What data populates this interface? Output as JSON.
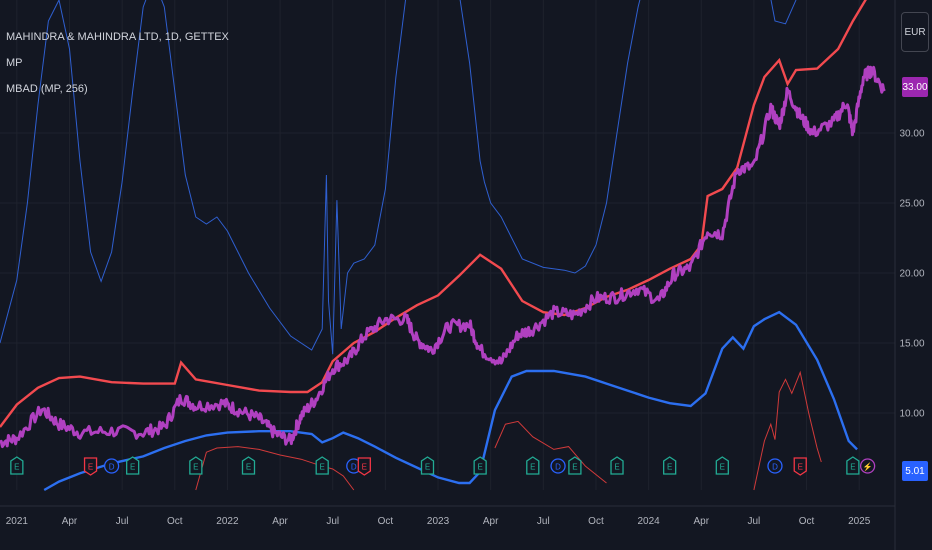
{
  "legend": {
    "symbol": "MAHINDRA & MAHINDRA LTD, 1D, GETTEX",
    "indicator1": "MP",
    "indicator2": "MBAD (MP, 256)"
  },
  "currency": "EUR",
  "badges": {
    "price": "33.00",
    "lower": "5.01"
  },
  "colors": {
    "background": "#131722",
    "price": "#b040c0",
    "upper": "#f24a4f",
    "lower": "#2c6ff0",
    "thin_blue": "#2f5fd0",
    "thin_red": "#d03a3a",
    "event_green": "#22ab94",
    "event_blue": "#2962ff",
    "event_red": "#f23645",
    "grid": "#1e222d",
    "text": "#b2b5be"
  },
  "chart_data": {
    "type": "line",
    "x_tick_labels": [
      "2021",
      "Apr",
      "Jul",
      "Oct",
      "2022",
      "Apr",
      "Jul",
      "Oct",
      "2023",
      "Apr",
      "Jul",
      "Oct",
      "2024",
      "Apr",
      "Jul",
      "Oct",
      "2025"
    ],
    "y_ticks": [
      10,
      15,
      20,
      25,
      30
    ],
    "y_tick_labels": [
      "10.00",
      "15.00",
      "20.00",
      "25.00",
      "30.00"
    ],
    "ylim": [
      4.5,
      39.5
    ],
    "xlim": [
      2020.92,
      2025.17
    ],
    "series": [
      {
        "name": "MP",
        "color": "#b040c0",
        "points": [
          [
            2020.92,
            7.9
          ],
          [
            2021.0,
            8.2
          ],
          [
            2021.12,
            10.3
          ],
          [
            2021.2,
            9.2
          ],
          [
            2021.3,
            8.6
          ],
          [
            2021.45,
            8.7
          ],
          [
            2021.6,
            8.6
          ],
          [
            2021.7,
            9.0
          ],
          [
            2021.78,
            11.1
          ],
          [
            2021.85,
            10.5
          ],
          [
            2021.98,
            10.7
          ],
          [
            2022.05,
            10.2
          ],
          [
            2022.15,
            9.6
          ],
          [
            2022.22,
            8.6
          ],
          [
            2022.3,
            8.0
          ],
          [
            2022.35,
            9.8
          ],
          [
            2022.42,
            11.0
          ],
          [
            2022.5,
            13.2
          ],
          [
            2022.58,
            13.9
          ],
          [
            2022.65,
            15.5
          ],
          [
            2022.75,
            16.7
          ],
          [
            2022.85,
            16.7
          ],
          [
            2022.9,
            15.2
          ],
          [
            2022.97,
            14.5
          ],
          [
            2023.05,
            16.2
          ],
          [
            2023.15,
            16.3
          ],
          [
            2023.2,
            14.5
          ],
          [
            2023.3,
            13.6
          ],
          [
            2023.38,
            15.6
          ],
          [
            2023.45,
            16.0
          ],
          [
            2023.55,
            17.2
          ],
          [
            2023.65,
            17.0
          ],
          [
            2023.75,
            18.2
          ],
          [
            2023.85,
            18.3
          ],
          [
            2023.95,
            18.9
          ],
          [
            2024.05,
            18.0
          ],
          [
            2024.12,
            19.9
          ],
          [
            2024.2,
            20.4
          ],
          [
            2024.28,
            23.0
          ],
          [
            2024.35,
            22.8
          ],
          [
            2024.42,
            27.4
          ],
          [
            2024.5,
            27.6
          ],
          [
            2024.58,
            31.8
          ],
          [
            2024.62,
            30.5
          ],
          [
            2024.66,
            33.0
          ],
          [
            2024.72,
            31.2
          ],
          [
            2024.78,
            30.0
          ],
          [
            2024.88,
            30.8
          ],
          [
            2024.94,
            32.2
          ],
          [
            2024.97,
            30.0
          ],
          [
            2025.02,
            34.0
          ],
          [
            2025.06,
            34.5
          ],
          [
            2025.12,
            33.0
          ]
        ]
      },
      {
        "name": "",
        "color": "#f24a4f",
        "points": [
          [
            2020.92,
            9.0
          ],
          [
            2021.0,
            10.6
          ],
          [
            2021.1,
            11.8
          ],
          [
            2021.2,
            12.5
          ],
          [
            2021.3,
            12.6
          ],
          [
            2021.45,
            12.2
          ],
          [
            2021.6,
            12.1
          ],
          [
            2021.7,
            12.1
          ],
          [
            2021.75,
            12.1
          ],
          [
            2021.78,
            13.6
          ],
          [
            2021.85,
            12.4
          ],
          [
            2022.0,
            12.0
          ],
          [
            2022.15,
            11.6
          ],
          [
            2022.3,
            11.5
          ],
          [
            2022.38,
            11.5
          ],
          [
            2022.45,
            12.2
          ],
          [
            2022.5,
            13.7
          ],
          [
            2022.6,
            15.0
          ],
          [
            2022.7,
            15.8
          ],
          [
            2022.8,
            16.8
          ],
          [
            2022.9,
            17.7
          ],
          [
            2023.0,
            18.4
          ],
          [
            2023.1,
            19.8
          ],
          [
            2023.2,
            21.3
          ],
          [
            2023.3,
            20.3
          ],
          [
            2023.4,
            18.0
          ],
          [
            2023.5,
            17.2
          ],
          [
            2023.6,
            17.0
          ],
          [
            2023.7,
            17.5
          ],
          [
            2023.8,
            18.3
          ],
          [
            2023.9,
            18.8
          ],
          [
            2024.0,
            19.5
          ],
          [
            2024.1,
            20.3
          ],
          [
            2024.2,
            21.0
          ],
          [
            2024.25,
            22.0
          ],
          [
            2024.28,
            25.5
          ],
          [
            2024.35,
            26.0
          ],
          [
            2024.42,
            27.5
          ],
          [
            2024.5,
            32.0
          ],
          [
            2024.55,
            34.0
          ],
          [
            2024.62,
            35.2
          ],
          [
            2024.66,
            33.5
          ],
          [
            2024.7,
            34.5
          ],
          [
            2024.8,
            34.6
          ],
          [
            2024.9,
            36.0
          ],
          [
            2024.97,
            38.0
          ],
          [
            2025.05,
            40.0
          ]
        ]
      },
      {
        "name": "",
        "color": "#2c6ff0",
        "points": [
          [
            2021.13,
            4.5
          ],
          [
            2021.2,
            5.1
          ],
          [
            2021.3,
            5.7
          ],
          [
            2021.45,
            6.4
          ],
          [
            2021.6,
            6.9
          ],
          [
            2021.7,
            7.5
          ],
          [
            2021.8,
            8.0
          ],
          [
            2021.9,
            8.4
          ],
          [
            2022.0,
            8.6
          ],
          [
            2022.15,
            8.7
          ],
          [
            2022.3,
            8.7
          ],
          [
            2022.4,
            8.5
          ],
          [
            2022.45,
            7.9
          ],
          [
            2022.5,
            8.2
          ],
          [
            2022.55,
            8.6
          ],
          [
            2022.62,
            8.2
          ],
          [
            2022.7,
            7.6
          ],
          [
            2022.8,
            6.8
          ],
          [
            2022.9,
            6.1
          ],
          [
            2023.0,
            5.4
          ],
          [
            2023.1,
            5.0
          ],
          [
            2023.15,
            5.0
          ],
          [
            2023.2,
            5.8
          ],
          [
            2023.27,
            10.2
          ],
          [
            2023.35,
            12.6
          ],
          [
            2023.42,
            13.0
          ],
          [
            2023.55,
            13.0
          ],
          [
            2023.7,
            12.6
          ],
          [
            2023.8,
            12.1
          ],
          [
            2023.9,
            11.6
          ],
          [
            2024.0,
            11.1
          ],
          [
            2024.1,
            10.7
          ],
          [
            2024.2,
            10.5
          ],
          [
            2024.27,
            11.4
          ],
          [
            2024.35,
            14.6
          ],
          [
            2024.4,
            15.4
          ],
          [
            2024.45,
            14.6
          ],
          [
            2024.5,
            16.2
          ],
          [
            2024.55,
            16.7
          ],
          [
            2024.62,
            17.2
          ],
          [
            2024.7,
            16.3
          ],
          [
            2024.8,
            13.8
          ],
          [
            2024.88,
            11.0
          ],
          [
            2024.95,
            8.0
          ],
          [
            2024.99,
            7.4
          ]
        ]
      },
      {
        "name": "",
        "color": "#2f5fd0",
        "points": [
          [
            2020.92,
            15.0
          ],
          [
            2021.0,
            19.5
          ],
          [
            2021.05,
            25.0
          ],
          [
            2021.1,
            32.0
          ],
          [
            2021.15,
            38.0
          ],
          [
            2021.2,
            39.5
          ],
          [
            2021.25,
            36.0
          ],
          [
            2021.3,
            28.0
          ],
          [
            2021.35,
            21.5
          ],
          [
            2021.4,
            19.4
          ],
          [
            2021.45,
            21.5
          ],
          [
            2021.5,
            26.5
          ],
          [
            2021.55,
            33.0
          ],
          [
            2021.6,
            39.0
          ],
          [
            2021.65,
            41.0
          ],
          [
            2021.7,
            39.0
          ],
          [
            2021.75,
            33.0
          ],
          [
            2021.8,
            27.0
          ],
          [
            2021.85,
            24.0
          ],
          [
            2021.9,
            23.5
          ],
          [
            2021.95,
            24.0
          ],
          [
            2022.0,
            23.0
          ],
          [
            2022.1,
            20.0
          ],
          [
            2022.2,
            17.5
          ],
          [
            2022.3,
            15.5
          ],
          [
            2022.4,
            14.5
          ],
          [
            2022.45,
            16.0
          ],
          [
            2022.47,
            27.0
          ],
          [
            2022.48,
            18.0
          ],
          [
            2022.5,
            14.2
          ],
          [
            2022.52,
            25.2
          ],
          [
            2022.54,
            16.0
          ],
          [
            2022.57,
            20.0
          ],
          [
            2022.6,
            20.7
          ],
          [
            2022.65,
            21.0
          ],
          [
            2022.7,
            22.0
          ],
          [
            2022.75,
            26.0
          ],
          [
            2022.8,
            34.0
          ],
          [
            2022.85,
            40.0
          ],
          [
            2022.9,
            42.0
          ],
          [
            2023.0,
            42.0
          ],
          [
            2023.1,
            40.0
          ],
          [
            2023.15,
            35.0
          ],
          [
            2023.2,
            28.0
          ],
          [
            2023.22,
            26.5
          ],
          [
            2023.25,
            25.0
          ],
          [
            2023.3,
            24.0
          ],
          [
            2023.35,
            22.5
          ],
          [
            2023.4,
            21.0
          ],
          [
            2023.5,
            20.4
          ],
          [
            2023.6,
            20.2
          ],
          [
            2023.65,
            20.0
          ],
          [
            2023.7,
            20.5
          ],
          [
            2023.75,
            22.0
          ],
          [
            2023.8,
            25.0
          ],
          [
            2023.85,
            30.0
          ],
          [
            2023.9,
            35.0
          ],
          [
            2023.95,
            39.0
          ],
          [
            2024.0,
            42.0
          ],
          [
            2024.55,
            42.0
          ],
          [
            2024.6,
            38.0
          ],
          [
            2024.65,
            37.8
          ],
          [
            2024.7,
            39.5
          ],
          [
            2024.75,
            42.0
          ]
        ]
      },
      {
        "name": "",
        "color": "#d03a3a",
        "segments": [
          [
            [
              2021.85,
              4.5
            ],
            [
              2021.9,
              7.2
            ],
            [
              2021.95,
              7.5
            ],
            [
              2022.05,
              7.6
            ],
            [
              2022.15,
              7.4
            ],
            [
              2022.25,
              7.0
            ],
            [
              2022.35,
              6.7
            ],
            [
              2022.45,
              6.2
            ],
            [
              2022.5,
              6.0
            ],
            [
              2022.55,
              5.5
            ],
            [
              2022.6,
              4.5
            ]
          ],
          [
            [
              2023.27,
              7.5
            ],
            [
              2023.32,
              9.2
            ],
            [
              2023.38,
              9.4
            ],
            [
              2023.45,
              8.3
            ],
            [
              2023.55,
              7.4
            ],
            [
              2023.62,
              7.6
            ],
            [
              2023.7,
              6.2
            ],
            [
              2023.8,
              5.0
            ]
          ],
          [
            [
              2024.5,
              4.5
            ],
            [
              2024.55,
              8.0
            ],
            [
              2024.58,
              9.2
            ],
            [
              2024.6,
              8.1
            ],
            [
              2024.62,
              11.5
            ],
            [
              2024.65,
              12.4
            ],
            [
              2024.68,
              11.4
            ],
            [
              2024.72,
              12.9
            ],
            [
              2024.76,
              10.0
            ],
            [
              2024.8,
              7.5
            ],
            [
              2024.82,
              6.5
            ]
          ]
        ]
      }
    ],
    "events": [
      {
        "x": 2021.0,
        "type": "earnings",
        "label": "E",
        "color": "#22ab94"
      },
      {
        "x": 2021.35,
        "type": "earnings-down",
        "label": "E",
        "color": "#f23645"
      },
      {
        "x": 2021.45,
        "type": "dividend",
        "label": "D",
        "color": "#2962ff"
      },
      {
        "x": 2021.55,
        "type": "earnings",
        "label": "E",
        "color": "#22ab94"
      },
      {
        "x": 2021.85,
        "type": "earnings",
        "label": "E",
        "color": "#22ab94"
      },
      {
        "x": 2022.1,
        "type": "earnings",
        "label": "E",
        "color": "#22ab94"
      },
      {
        "x": 2022.45,
        "type": "earnings",
        "label": "E",
        "color": "#22ab94"
      },
      {
        "x": 2022.6,
        "type": "dividend",
        "label": "D",
        "color": "#2962ff"
      },
      {
        "x": 2022.65,
        "type": "earnings-down",
        "label": "E",
        "color": "#f23645"
      },
      {
        "x": 2022.95,
        "type": "earnings",
        "label": "E",
        "color": "#22ab94"
      },
      {
        "x": 2023.2,
        "type": "earnings",
        "label": "E",
        "color": "#22ab94"
      },
      {
        "x": 2023.45,
        "type": "earnings",
        "label": "E",
        "color": "#22ab94"
      },
      {
        "x": 2023.57,
        "type": "dividend",
        "label": "D",
        "color": "#2962ff"
      },
      {
        "x": 2023.65,
        "type": "earnings",
        "label": "E",
        "color": "#22ab94"
      },
      {
        "x": 2023.85,
        "type": "earnings",
        "label": "E",
        "color": "#22ab94"
      },
      {
        "x": 2024.1,
        "type": "earnings",
        "label": "E",
        "color": "#22ab94"
      },
      {
        "x": 2024.35,
        "type": "earnings",
        "label": "E",
        "color": "#22ab94"
      },
      {
        "x": 2024.6,
        "type": "dividend",
        "label": "D",
        "color": "#2962ff"
      },
      {
        "x": 2024.72,
        "type": "earnings-down",
        "label": "E",
        "color": "#f23645"
      },
      {
        "x": 2024.97,
        "type": "earnings",
        "label": "E",
        "color": "#22ab94"
      },
      {
        "x": 2025.04,
        "type": "split",
        "label": "⚡",
        "color": "#b040c0"
      }
    ]
  }
}
